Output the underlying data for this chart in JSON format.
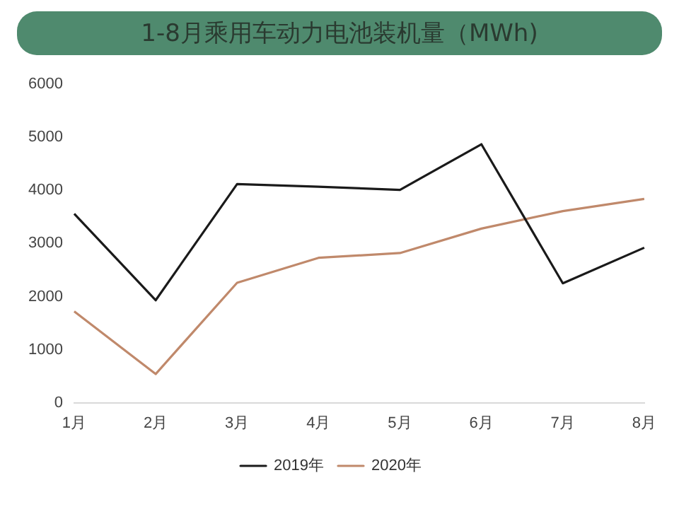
{
  "chart_data": {
    "type": "line",
    "title": "1-8月乘用车动力电池装机量（MWh)",
    "categories": [
      "1月",
      "2月",
      "3月",
      "4月",
      "5月",
      "6月",
      "7月",
      "8月"
    ],
    "series": [
      {
        "name": "2019年",
        "color": "#1a1a1a",
        "values": [
          3560,
          1930,
          4120,
          4070,
          4010,
          4870,
          2250,
          2920
        ]
      },
      {
        "name": "2020年",
        "color": "#c0896b",
        "values": [
          1720,
          540,
          2260,
          2730,
          2820,
          3280,
          3610,
          3840
        ]
      }
    ],
    "ylim": [
      0,
      6000
    ],
    "yticks": [
      0,
      1000,
      2000,
      3000,
      4000,
      5000,
      6000
    ],
    "grid": false,
    "legend": "bottom",
    "marker": "none",
    "line_style": "solid"
  }
}
